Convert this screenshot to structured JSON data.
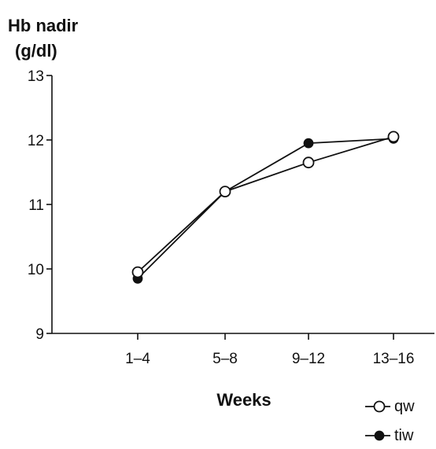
{
  "chart_data": {
    "type": "line",
    "ylabel_line1": "Hb nadir",
    "ylabel_line2": "(g/dl)",
    "xlabel": "Weeks",
    "categories": [
      "1–4",
      "5–8",
      "9–12",
      "13–16"
    ],
    "ylim": [
      9,
      13
    ],
    "yticks": [
      9,
      10,
      11,
      12,
      13
    ],
    "grid": false,
    "legend_position": "bottom-right",
    "series": [
      {
        "name": "qw",
        "marker": "open-circle",
        "values": [
          9.95,
          11.2,
          11.65,
          12.05
        ]
      },
      {
        "name": "tiw",
        "marker": "filled-circle",
        "values": [
          9.85,
          11.2,
          11.95,
          12.02
        ]
      }
    ]
  }
}
